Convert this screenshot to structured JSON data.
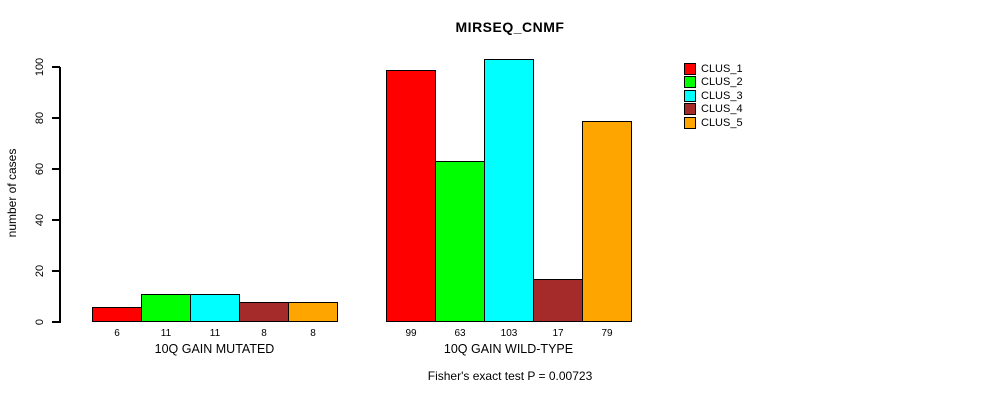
{
  "chart_data": {
    "type": "bar",
    "title": "MIRSEQ_CNMF",
    "xlabel": "",
    "ylabel": "number of cases",
    "categories": [
      "10Q GAIN MUTATED",
      "10Q GAIN WILD-TYPE"
    ],
    "series": [
      {
        "name": "CLUS_1",
        "color": "#ff0000",
        "values": [
          6,
          99
        ]
      },
      {
        "name": "CLUS_2",
        "color": "#00ff00",
        "values": [
          11,
          63
        ]
      },
      {
        "name": "CLUS_3",
        "color": "#00ffff",
        "values": [
          11,
          103
        ]
      },
      {
        "name": "CLUS_4",
        "color": "#a52a2a",
        "values": [
          8,
          17
        ]
      },
      {
        "name": "CLUS_5",
        "color": "#ffa500",
        "values": [
          8,
          79
        ]
      }
    ],
    "bar_value_labels": [
      [
        6,
        11,
        11,
        8,
        8
      ],
      [
        99,
        63,
        103,
        17,
        79
      ]
    ],
    "yticks": [
      0,
      20,
      40,
      60,
      80,
      100
    ],
    "ylim": [
      0,
      105
    ],
    "grid": false,
    "legend_position": "right-outside",
    "annotation": "Fisher's exact test P = 0.00723",
    "colors": {
      "background": "#ffffff",
      "axis": "#000000",
      "text": "#000000"
    }
  }
}
